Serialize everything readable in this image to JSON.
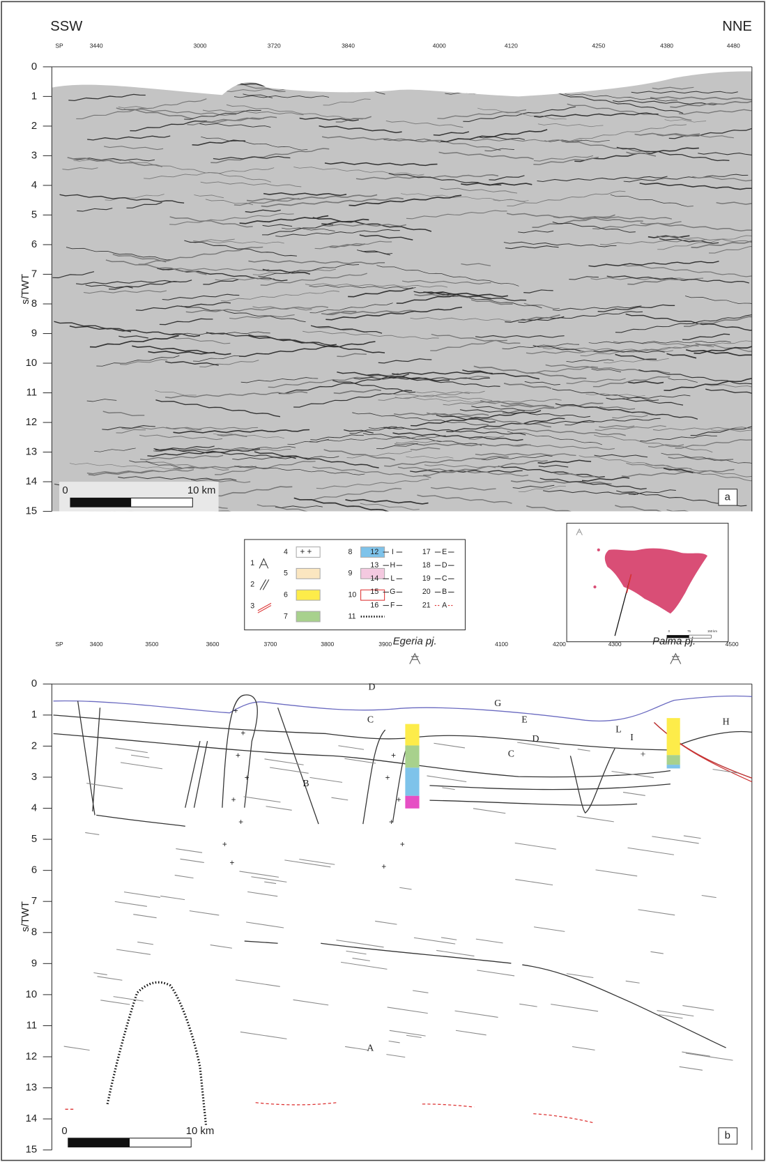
{
  "panel_a": {
    "left_direction": "SSW",
    "right_direction": "NNE",
    "sp_label": "SP",
    "sp_ticks": [
      "3440",
      "3000",
      "3720",
      "3840",
      "4000",
      "4120",
      "4250",
      "4380",
      "4480"
    ],
    "y_label": "s/TWT",
    "y_ticks": [
      0,
      1,
      2,
      3,
      4,
      5,
      6,
      7,
      8,
      9,
      10,
      11,
      12,
      13,
      14,
      15
    ],
    "scale_start": "0",
    "scale_end": "10 km",
    "panel_label": "a"
  },
  "legend": {
    "items": [
      {
        "number": "1"
      },
      {
        "number": "2"
      },
      {
        "number": "3"
      },
      {
        "number": "4"
      },
      {
        "number": "5"
      },
      {
        "number": "6"
      },
      {
        "number": "7"
      },
      {
        "number": "8"
      },
      {
        "number": "9"
      },
      {
        "number": "10"
      },
      {
        "number": "11"
      },
      {
        "number": "12",
        "horizon": "I"
      },
      {
        "number": "13",
        "horizon": "H"
      },
      {
        "number": "14",
        "horizon": "L"
      },
      {
        "number": "15",
        "horizon": "G"
      },
      {
        "number": "16",
        "horizon": "F"
      },
      {
        "number": "17",
        "horizon": "E"
      },
      {
        "number": "18",
        "horizon": "D"
      },
      {
        "number": "19",
        "horizon": "C"
      },
      {
        "number": "20",
        "horizon": "B"
      },
      {
        "number": "21",
        "horizon": "A"
      }
    ]
  },
  "inset_map": {
    "scale_ticks": [
      "0",
      "75",
      "150 km"
    ]
  },
  "panel_b": {
    "sp_label": "SP",
    "sp_ticks": [
      "3400",
      "3500",
      "3600",
      "3700",
      "3800",
      "3900",
      "4100",
      "4200",
      "4300",
      "4500"
    ],
    "wells": [
      "Egeria pj.",
      "Palma pj."
    ],
    "horizon_labels": [
      "G",
      "E",
      "D",
      "C",
      "L",
      "I",
      "H",
      "D",
      "C",
      "+",
      "B",
      "A"
    ],
    "y_label": "s/TWT",
    "y_ticks": [
      0,
      1,
      2,
      3,
      4,
      5,
      6,
      7,
      8,
      9,
      10,
      11,
      12,
      13,
      14,
      15
    ],
    "scale_start": "0",
    "scale_end": "10 km",
    "panel_label": "b"
  }
}
